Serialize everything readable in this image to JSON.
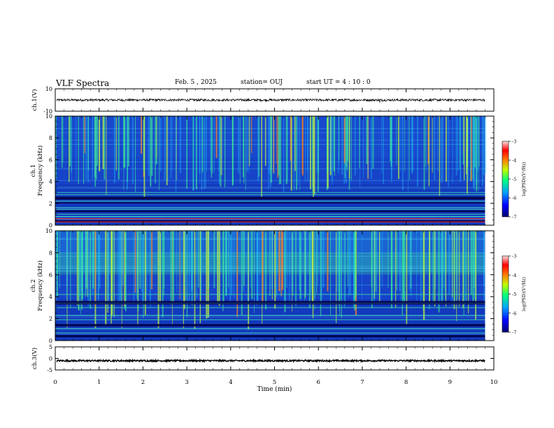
{
  "header": {
    "title": "VLF Spectra",
    "date": "Feb. 5 , 2025",
    "station": "station= OUJ",
    "start": "start  UT =   4 : 10 : 0"
  },
  "chart_data": [
    {
      "type": "line",
      "name": "ch1-waveform-panel",
      "ylabel": "ch.1(V)",
      "ylim": [
        -10,
        10
      ],
      "y_ticks": [
        10,
        -10
      ],
      "xlim": [
        0,
        10
      ],
      "trace_level": 0,
      "trace_amplitude": 1,
      "spikes": [
        {
          "x": 7.4,
          "y": -2.2
        }
      ]
    },
    {
      "type": "heatmap",
      "name": "ch1-spectrogram",
      "ylabel": "ch.1\nFrequency (kHz)",
      "ylim": [
        0,
        10
      ],
      "y_ticks": [
        0,
        2,
        4,
        6,
        8,
        10
      ],
      "xlim": [
        0,
        9.8
      ],
      "colorbar": {
        "label": "log(PSD)(V²/Hz)",
        "range": [
          -7,
          -3
        ],
        "ticks": [
          -3,
          -4,
          -5,
          -6,
          -7
        ]
      },
      "dark_bands_khz": [
        [
          2.0,
          2.1
        ],
        [
          2.35,
          2.6
        ],
        [
          1.2,
          1.35
        ],
        [
          0.25,
          0.45
        ]
      ],
      "red_lines_khz": [
        0.6,
        0.3
      ],
      "bright_lines_khz": [
        3.0,
        2.8,
        2.2,
        1.6,
        1.45,
        1.0,
        0.8
      ],
      "activity": "moderate"
    },
    {
      "type": "heatmap",
      "name": "ch2-spectrogram",
      "ylabel": "ch.2\nFrequency (kHz)",
      "ylim": [
        0,
        10
      ],
      "y_ticks": [
        0,
        2,
        4,
        6,
        8,
        10
      ],
      "xlim": [
        0,
        9.8
      ],
      "colorbar": {
        "label": "log(PSD)(V²/Hz)",
        "range": [
          -7,
          -3
        ],
        "ticks": [
          -3,
          -4,
          -5,
          -6,
          -7
        ]
      },
      "dark_bands_khz": [
        [
          3.3,
          3.6
        ],
        [
          1.3,
          1.5
        ],
        [
          0.3,
          0.5
        ]
      ],
      "red_lines_khz": [],
      "bright_lines_khz": [
        4.2,
        3.0,
        2.3,
        1.9,
        1.1,
        0.7
      ],
      "activity": "strong"
    },
    {
      "type": "line",
      "name": "ch3-waveform-panel",
      "ylabel": "ch.3(V)",
      "ylim": [
        -5,
        5
      ],
      "y_ticks": [
        5,
        0,
        -5
      ],
      "xlim": [
        0,
        10
      ],
      "trace_level": -1.0,
      "trace_amplitude": 0.35,
      "spikes": []
    }
  ],
  "x_axis": {
    "label": "Time (min)",
    "ticks": [
      0,
      1,
      2,
      3,
      4,
      5,
      6,
      7,
      8,
      9,
      10
    ],
    "range": [
      0,
      10
    ]
  }
}
